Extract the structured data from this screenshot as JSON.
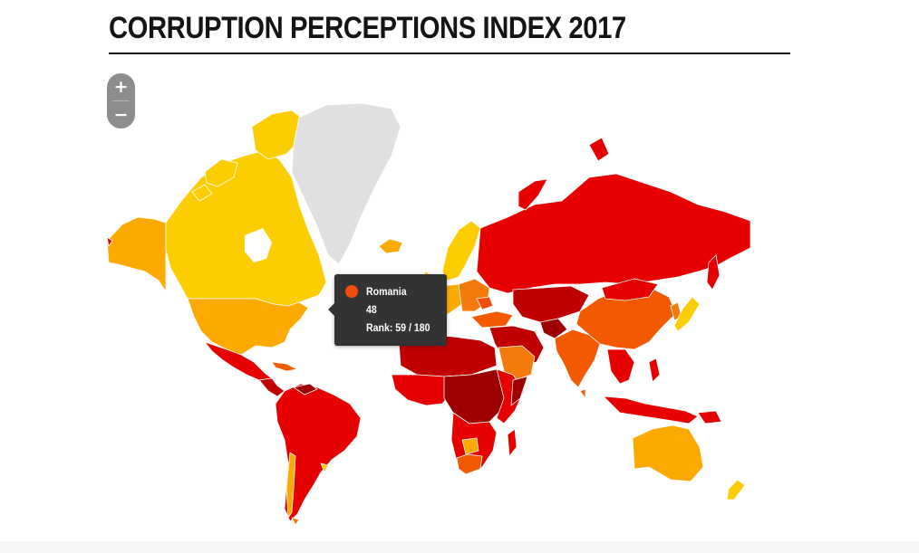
{
  "title": "CORRUPTION PERCEPTIONS INDEX 2017",
  "zoom": {
    "in_label": "+",
    "out_label": "−"
  },
  "colors": {
    "very_clean": "#fccd00",
    "clean": "#fdaa00",
    "moderate": "#f47a0c",
    "corrupt_light": "#f35a00",
    "corrupt": "#e60000",
    "very_corrupt": "#c00000",
    "most_corrupt": "#9e0000",
    "no_data": "#e0e0e0"
  },
  "tooltip": {
    "country": "Romania",
    "score": "48",
    "rank_label": "Rank: 59 / 180",
    "color": "#f24e0b"
  }
}
